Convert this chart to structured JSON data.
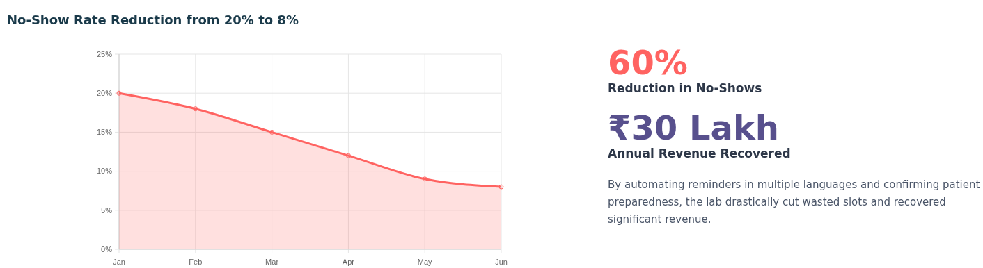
{
  "chart_data": {
    "type": "area",
    "title": "No-Show Rate Reduction from 20% to 8%",
    "categories": [
      "Jan",
      "Feb",
      "Mar",
      "Apr",
      "May",
      "Jun"
    ],
    "series": [
      {
        "color": "#ff6361",
        "values": [
          20,
          18,
          15,
          12,
          9,
          8
        ]
      }
    ],
    "ylim": [
      0,
      25
    ],
    "yticks": [
      {
        "value": 0,
        "label": "0%"
      },
      {
        "value": 5,
        "label": "5%"
      },
      {
        "value": 10,
        "label": "10%"
      },
      {
        "value": 15,
        "label": "15%"
      },
      {
        "value": 20,
        "label": "20%"
      },
      {
        "value": 25,
        "label": "25%"
      }
    ],
    "grid": true,
    "marker": "circle",
    "annotations": [
      "60%",
      "Reduction in No-Shows",
      "₹30 Lakh",
      "Annual Revenue Recovered",
      "By automating reminders in multiple languages and confirming patient preparedness, the lab drastically cut wasted slots and recovered significant revenue."
    ]
  }
}
